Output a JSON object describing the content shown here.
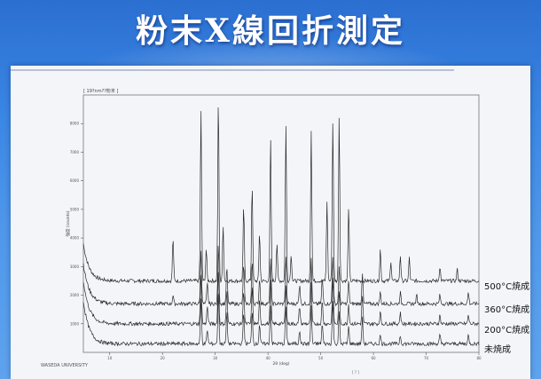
{
  "slide": {
    "title": "粉末X線回折測定",
    "institution": "WASEDA UNIVERSITY",
    "chart_header": "[ 19?nm??粉末 ]",
    "footer_note": "[ ? ]"
  },
  "colors": {
    "background_top": "#2b6fd1",
    "background_bottom": "#5ea3ee",
    "title": "#ffffff",
    "paper": "#f4f5f9",
    "trace": "#2a2a2a"
  },
  "chart_data": {
    "type": "line",
    "title": "",
    "xlabel": "2θ (deg)",
    "ylabel": "強度 (counts)",
    "xlim": [
      5,
      80
    ],
    "ylim": [
      0,
      9000
    ],
    "x_ticks": [
      10,
      20,
      30,
      40,
      50,
      60,
      70,
      80
    ],
    "y_ticks": [
      1000,
      2000,
      3000,
      4000,
      5000,
      6000,
      7000,
      8000
    ],
    "grid": false,
    "legend": "right, inline labels",
    "baseline": {
      "start": 5.0,
      "decay": 1.1
    },
    "series": [
      {
        "name": "500°C焼成",
        "offset": 2500,
        "low_angle_rise": 1300,
        "peaks": [
          [
            22.0,
            1500
          ],
          [
            27.3,
            6000
          ],
          [
            28.3,
            1100
          ],
          [
            30.6,
            6400
          ],
          [
            31.5,
            1900
          ],
          [
            35.4,
            2600
          ],
          [
            37.0,
            3400
          ],
          [
            38.4,
            1700
          ],
          [
            40.5,
            5000
          ],
          [
            41.7,
            1300
          ],
          [
            43.4,
            5400
          ],
          [
            44.4,
            900
          ],
          [
            48.2,
            5300
          ],
          [
            51.2,
            2800
          ],
          [
            52.3,
            5600
          ],
          [
            53.5,
            5800
          ],
          [
            55.3,
            2600
          ],
          [
            61.3,
            1100
          ],
          [
            63.3,
            700
          ],
          [
            65.1,
            900
          ],
          [
            66.8,
            800
          ],
          [
            72.6,
            500
          ],
          [
            75.9,
            400
          ]
        ]
      },
      {
        "name": "360°C焼成",
        "offset": 1700,
        "low_angle_rise": 1400,
        "peaks": [
          [
            22.0,
            300
          ],
          [
            27.3,
            1900
          ],
          [
            28.5,
            700
          ],
          [
            30.6,
            2100
          ],
          [
            32.2,
            1300
          ],
          [
            35.4,
            1400
          ],
          [
            37.0,
            1500
          ],
          [
            38.4,
            900
          ],
          [
            40.5,
            1600
          ],
          [
            43.4,
            1600
          ],
          [
            46.0,
            700
          ],
          [
            48.2,
            1600
          ],
          [
            50.3,
            900
          ],
          [
            52.3,
            1700
          ],
          [
            53.5,
            1300
          ],
          [
            55.3,
            800
          ],
          [
            57.9,
            1100
          ],
          [
            61.3,
            400
          ],
          [
            65.1,
            400
          ],
          [
            68.2,
            300
          ],
          [
            72.6,
            300
          ],
          [
            78.0,
            400
          ]
        ]
      },
      {
        "name": "200°C焼成",
        "offset": 1000,
        "low_angle_rise": 1500,
        "peaks": [
          [
            27.3,
            1800
          ],
          [
            28.5,
            600
          ],
          [
            30.6,
            1900
          ],
          [
            32.2,
            1200
          ],
          [
            35.4,
            1200
          ],
          [
            37.0,
            1300
          ],
          [
            38.4,
            800
          ],
          [
            40.5,
            1500
          ],
          [
            43.4,
            1400
          ],
          [
            46.0,
            600
          ],
          [
            48.2,
            1400
          ],
          [
            50.3,
            800
          ],
          [
            52.3,
            1600
          ],
          [
            53.5,
            1200
          ],
          [
            55.3,
            700
          ],
          [
            57.9,
            1000
          ],
          [
            61.3,
            400
          ],
          [
            65.1,
            400
          ],
          [
            72.6,
            300
          ],
          [
            78.0,
            300
          ]
        ]
      },
      {
        "name": "未焼成",
        "offset": 300,
        "low_angle_rise": 1500,
        "peaks": [
          [
            27.3,
            1600
          ],
          [
            28.5,
            500
          ],
          [
            30.6,
            1800
          ],
          [
            32.2,
            1100
          ],
          [
            35.4,
            1100
          ],
          [
            37.0,
            1200
          ],
          [
            38.4,
            700
          ],
          [
            40.5,
            1400
          ],
          [
            43.4,
            1300
          ],
          [
            46.0,
            500
          ],
          [
            48.2,
            1300
          ],
          [
            50.3,
            700
          ],
          [
            52.3,
            1500
          ],
          [
            53.5,
            1100
          ],
          [
            55.3,
            600
          ],
          [
            57.9,
            900
          ],
          [
            61.3,
            300
          ],
          [
            65.1,
            300
          ],
          [
            72.6,
            300
          ],
          [
            78.0,
            300
          ]
        ]
      }
    ]
  }
}
